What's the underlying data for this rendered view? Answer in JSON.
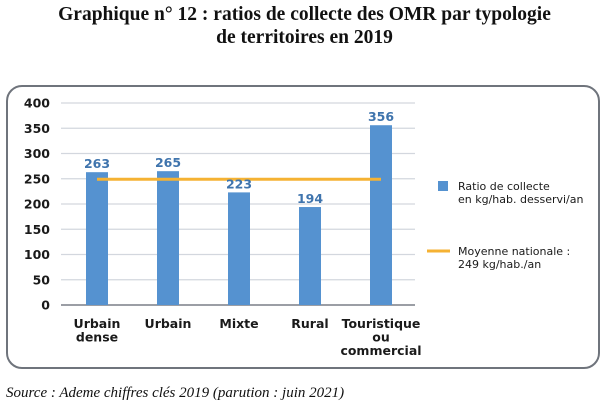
{
  "chart_data": {
    "type": "bar",
    "title": "Graphique n° 12 : ratios de collecte des OMR par typologie de territoires en 2019",
    "title_lines": [
      "Graphique n° 12 : ratios de collecte des OMR par typologie",
      "de territoires en 2019"
    ],
    "categories": [
      [
        "Urbain",
        "dense"
      ],
      [
        "Urbain"
      ],
      [
        "Mixte"
      ],
      [
        "Rural"
      ],
      [
        "Touristique",
        "ou",
        "commercial"
      ]
    ],
    "series": [
      {
        "name": "Ratio de collecte en kg/hab. desservi/an",
        "type": "bar",
        "color": "#5592d0",
        "values": [
          263,
          265,
          223,
          194,
          356
        ],
        "data_labels": [
          "263",
          "265",
          "223",
          "194",
          "356"
        ]
      },
      {
        "name": "Moyenne nationale : 249 kg/hab./an",
        "type": "line",
        "color": "#f5b233",
        "value": 249
      }
    ],
    "legend": {
      "position": "right",
      "entries": [
        {
          "lines": [
            "Ratio de collecte",
            "en kg/hab. desservi/an"
          ],
          "marker": "square",
          "color": "#5592d0"
        },
        {
          "lines": [
            "Moyenne nationale :",
            "249 kg/hab./an"
          ],
          "marker": "line",
          "color": "#f5b233"
        }
      ]
    },
    "xlabel": "",
    "ylabel": "",
    "ylim": [
      0,
      400
    ],
    "yticks": [
      0,
      50,
      100,
      150,
      200,
      250,
      300,
      350,
      400
    ],
    "grid": true
  },
  "source": "Source : Ademe chiffres clés 2019 (parution : juin 2021)"
}
